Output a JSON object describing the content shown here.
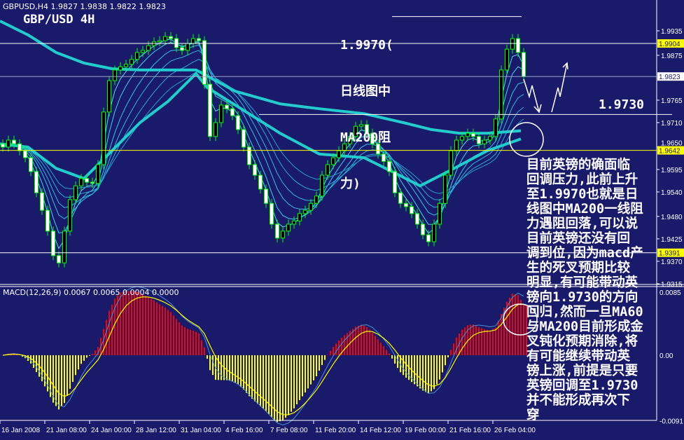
{
  "header": {
    "symbol_info": "GBPUSD,H4  1.9827 1.9838 1.9822 1.9823",
    "title": "GBP/USD 4H"
  },
  "annotations": {
    "resistance_lines": [
      "1.9970(",
      "日线图中",
      "MA200阻",
      "力)"
    ],
    "support_label": "1.9730",
    "commentary": [
      "目前英镑的确面临",
      "回调压力,此前上升",
      "至1.9970也就是日",
      "线图中MA200一线阻",
      "力遇阻回落,可以说",
      "目前英镑还没有回",
      "调到位,因为macd产",
      "生的死叉预期比较",
      "明显,有可能带动英",
      "镑向1.9730的方向",
      "回归,然而一旦MA60",
      "与MA200目前形成金",
      "叉钝化预期消除,将",
      "有可能继续带动英",
      "镑上涨,前提是只要",
      "英镑回调至1.9730",
      "并不能形成再次下",
      "穿"
    ]
  },
  "chart_data": {
    "type": "candlestick",
    "symbol": "GBPUSD",
    "timeframe": "H4",
    "colors": {
      "background": "#1a1a6b",
      "candle": "#00ff00",
      "ma_thin": "#33ccee",
      "ma_thick": "#22cccc",
      "macd_up": "#ff0000",
      "macd_down": "#ffff00",
      "macd_line": "#4a90d0",
      "signal_line": "#ffff00",
      "level_yellow": "#ffff00",
      "level_white": "#ffffff"
    },
    "price_axis": {
      "range": [
        1.93,
        2.001
      ],
      "ticks": [
        "1.9935",
        "1.9875",
        "1.9765",
        "1.9710",
        "1.9650",
        "1.9595",
        "1.9540",
        "1.9480",
        "1.9425",
        "1.9370",
        "1.9315"
      ]
    },
    "price_labels": [
      {
        "value": "1.9904",
        "style": "yellow"
      },
      {
        "value": "1.9823",
        "style": "white"
      },
      {
        "value": "1.9642",
        "style": "yellow"
      },
      {
        "value": "1.9391",
        "style": "yellow"
      }
    ],
    "levels": [
      {
        "price": 1.997,
        "color": "#ffffff"
      },
      {
        "price": 1.9904,
        "color": "#ffffff"
      },
      {
        "price": 1.9823,
        "color": "#9aa0c0"
      },
      {
        "price": 1.973,
        "color": "#ffffff"
      },
      {
        "price": 1.9642,
        "color": "#ffff00"
      },
      {
        "price": 1.9391,
        "color": "#ffffff"
      }
    ],
    "time_axis": [
      "16 Jan 2008",
      "21 Jan 08:00",
      "24 Jan 00:00",
      "28 Jan 12:00",
      "31 Jan 04:00",
      "4 Feb 16:00",
      "7 Feb 08:00",
      "11 Feb 20:00",
      "14 Feb 12:00",
      "19 Feb 00:00",
      "21 Feb 16:00",
      "26 Feb 04:00"
    ],
    "closes": [
      1.965,
      1.9667,
      1.9658,
      1.9641,
      1.9624,
      1.959,
      1.9538,
      1.9495,
      1.9444,
      1.9384,
      1.9366,
      1.9444,
      1.9521,
      1.9555,
      1.9573,
      1.9564,
      1.9561,
      1.9607,
      1.9736,
      1.9813,
      1.9839,
      1.9847,
      1.9853,
      1.9865,
      1.9882,
      1.9887,
      1.9899,
      1.9908,
      1.9911,
      1.9921,
      1.9916,
      1.9894,
      1.9887,
      1.9904,
      1.9916,
      1.9911,
      1.9804,
      1.9676,
      1.971,
      1.9753,
      1.9744,
      1.9727,
      1.9693,
      1.965,
      1.9607,
      1.9581,
      1.9547,
      1.9512,
      1.9461,
      1.9427,
      1.9444,
      1.9461,
      1.9469,
      1.9487,
      1.9495,
      1.9512,
      1.953,
      1.9581,
      1.9607,
      1.9624,
      1.9641,
      1.9658,
      1.9676,
      1.9701,
      1.9705,
      1.9684,
      1.9658,
      1.9633,
      1.9615,
      1.959,
      1.9538,
      1.9512,
      1.9504,
      1.9487,
      1.9461,
      1.9435,
      1.9418,
      1.9461,
      1.9512,
      1.9581,
      1.9641,
      1.9667,
      1.9676,
      1.9684,
      1.9676,
      1.9658,
      1.9667,
      1.9676,
      1.9719,
      1.9839,
      1.989,
      1.9916,
      1.9882,
      1.9823
    ],
    "ma200": [
      [
        0,
        1.9959
      ],
      [
        5,
        1.9925
      ],
      [
        10,
        1.9882
      ],
      [
        15,
        1.9856
      ],
      [
        20,
        1.9842
      ],
      [
        25,
        1.9839
      ],
      [
        35,
        1.9839
      ],
      [
        42,
        1.9787
      ],
      [
        50,
        1.9756
      ],
      [
        57,
        1.9744
      ],
      [
        65,
        1.9732
      ],
      [
        72,
        1.971
      ],
      [
        77,
        1.9693
      ],
      [
        82,
        1.9684
      ],
      [
        87,
        1.9684
      ],
      [
        93,
        1.969
      ]
    ],
    "ma60": [
      [
        0,
        1.9658
      ],
      [
        5,
        1.965
      ],
      [
        10,
        1.9598
      ],
      [
        15,
        1.9573
      ],
      [
        20,
        1.9641
      ],
      [
        25,
        1.971
      ],
      [
        30,
        1.9762
      ],
      [
        35,
        1.983
      ],
      [
        37,
        1.9796
      ],
      [
        42,
        1.9753
      ],
      [
        50,
        1.9684
      ],
      [
        57,
        1.9633
      ],
      [
        65,
        1.9624
      ],
      [
        70,
        1.959
      ],
      [
        75,
        1.9555
      ],
      [
        80,
        1.959
      ],
      [
        87,
        1.9641
      ],
      [
        93,
        1.967
      ]
    ],
    "macd": {
      "label": "MACD(12,26,9) 0.0067 0.0065 0.0004 0.0000",
      "axis_ticks": [
        "0.0085",
        "0.00",
        "-0.0091"
      ],
      "range": [
        -0.0091,
        0.0085
      ]
    }
  }
}
